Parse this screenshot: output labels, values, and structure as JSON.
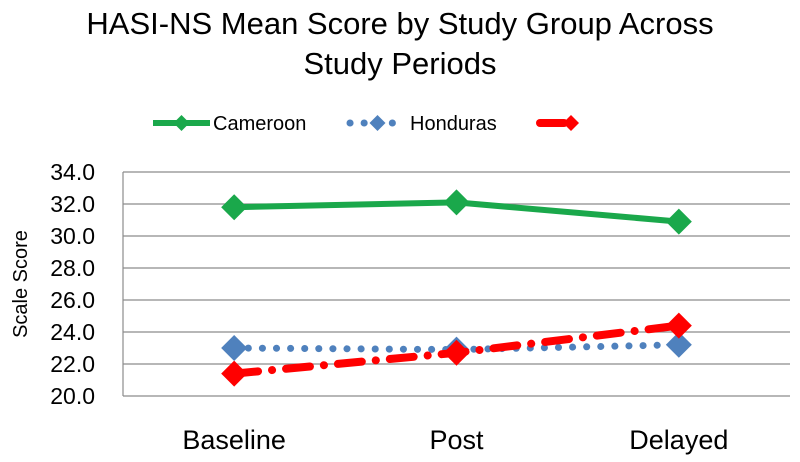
{
  "chart_data": {
    "type": "line",
    "title": "HASI-NS Mean Score by Study Group Across Study Periods",
    "title_lines": [
      "HASI-NS Mean Score by Study Group Across",
      "Study Periods"
    ],
    "ylabel": "Scale Score",
    "xlabel": "",
    "categories": [
      "Baseline",
      "Post",
      "Delayed"
    ],
    "ylim": [
      20.0,
      34.0
    ],
    "yticks": [
      "20.0",
      "22.0",
      "24.0",
      "26.0",
      "28.0",
      "30.0",
      "32.0",
      "34.0"
    ],
    "grid": true,
    "legend_position": "top",
    "series": [
      {
        "name": "Cameroon",
        "values": [
          31.8,
          32.1,
          30.9
        ],
        "color": "#1aa84b",
        "style": "solid",
        "marker": "diamond"
      },
      {
        "name": "Honduras",
        "values": [
          23.0,
          22.9,
          23.2
        ],
        "color": "#4f81bd",
        "style": "dotted",
        "marker": "diamond"
      },
      {
        "name": "",
        "values": [
          21.4,
          22.7,
          24.4
        ],
        "color": "#ff0000",
        "style": "dashed",
        "marker": "diamond"
      }
    ]
  }
}
